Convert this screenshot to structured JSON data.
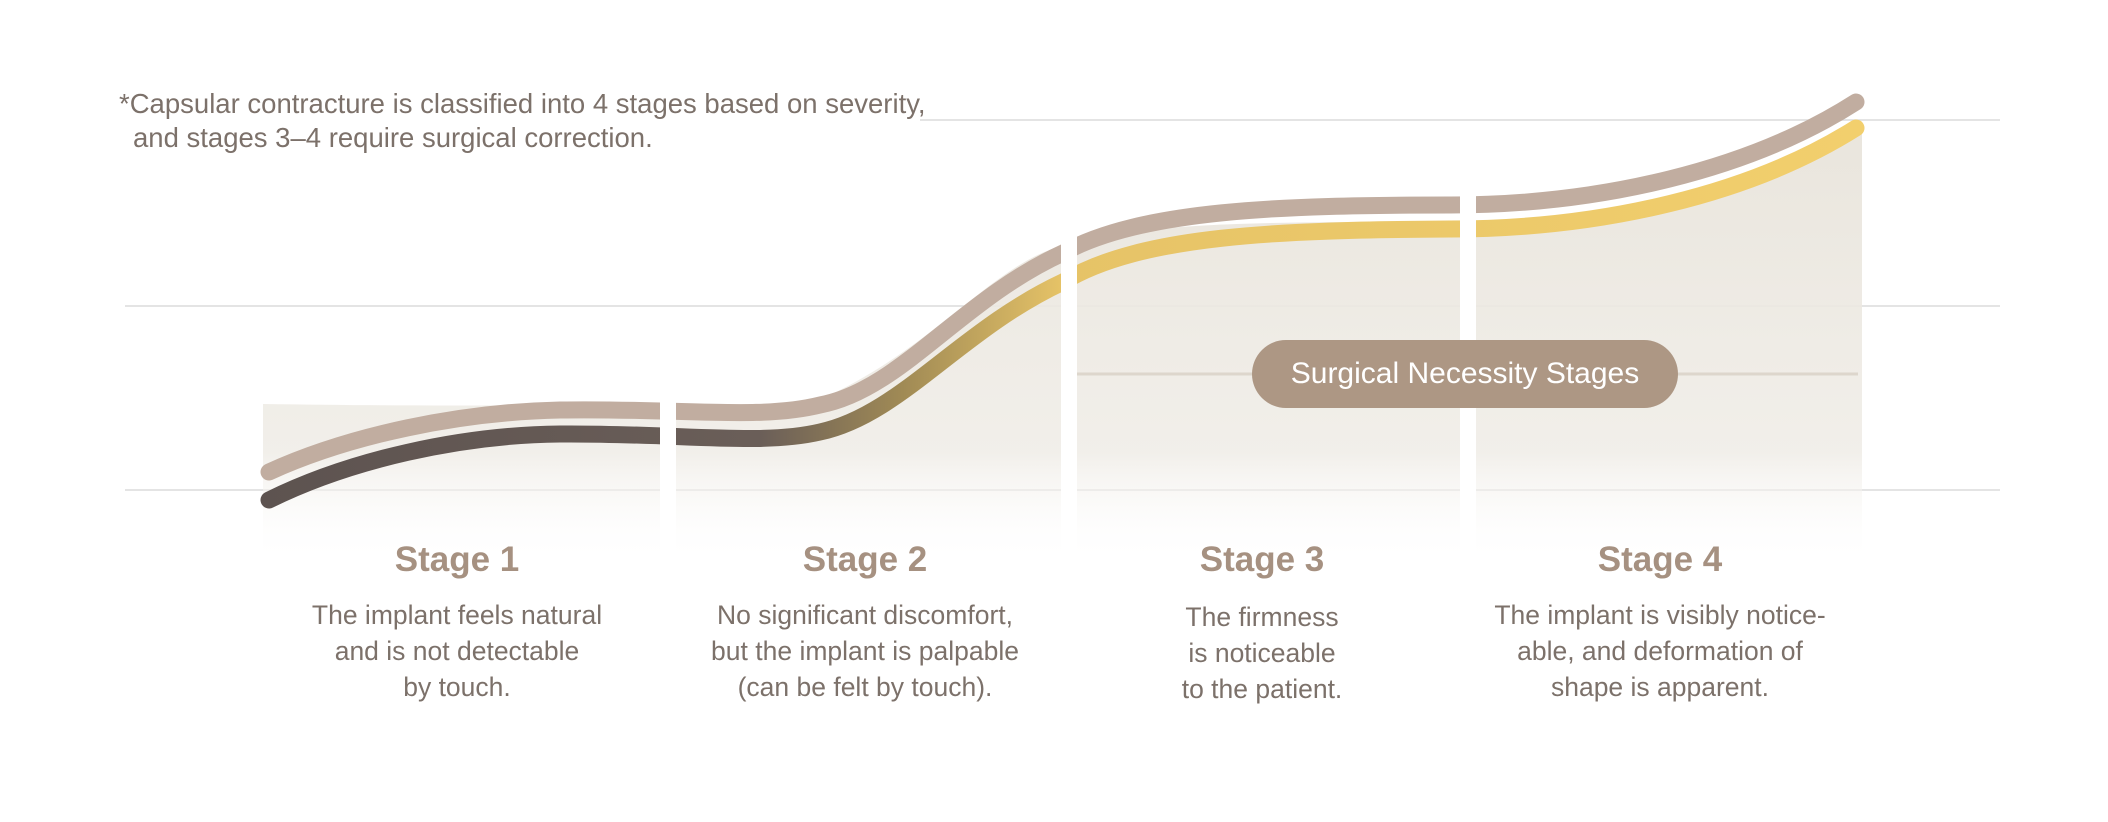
{
  "note": {
    "line1": "*Capsular contracture is classified into 4 stages based on severity,",
    "line2": "and stages 3–4 require surgical correction."
  },
  "badge": {
    "label": "Surgical Necessity Stages"
  },
  "stages": [
    {
      "title": "Stage 1",
      "description": "The implant feels natural\nand is not detectable\nby touch."
    },
    {
      "title": "Stage 2",
      "description": "No significant discomfort,\nbut the implant is palpable\n(can be felt by touch)."
    },
    {
      "title": "Stage 3",
      "description": "The firmness\nis noticeable\nto the patient."
    },
    {
      "title": "Stage 4",
      "description": "The implant is visibly notice-\nable, and deformation of\nshape is apparent."
    }
  ],
  "colors": {
    "upper_curve": "#c1ada0",
    "lower_curve_start": "#645a56",
    "lower_curve_end": "#efcc6c",
    "area_fill": "#e9e5dc",
    "gridline": "#dcdcdc",
    "badge": "#ad9784",
    "stage_title": "#a69181",
    "body_text": "#7c716a"
  }
}
